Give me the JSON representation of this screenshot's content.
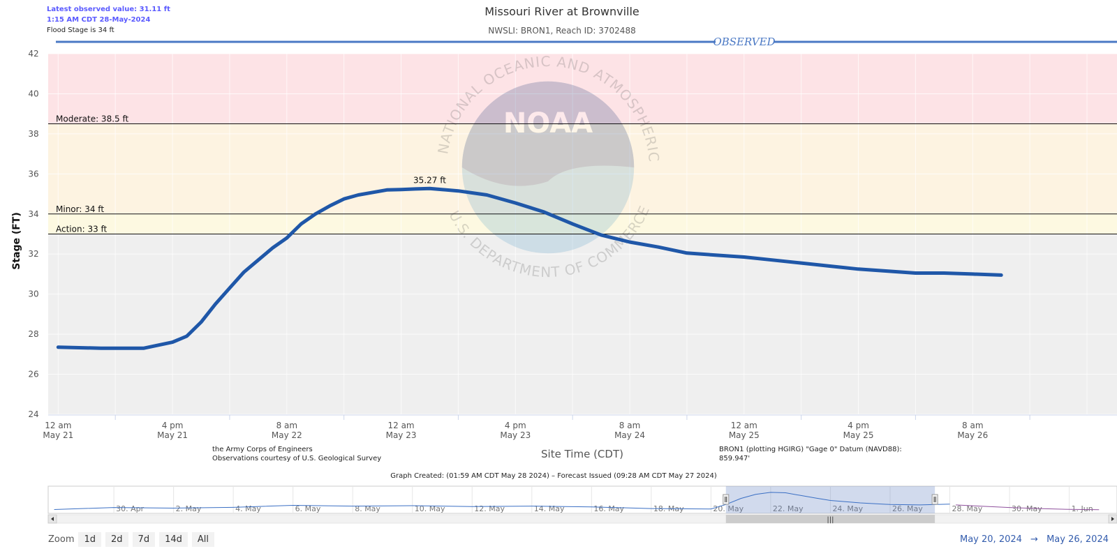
{
  "header": {
    "latest_label": "Latest observed value: 31.11 ft",
    "latest_time": "1:15 AM CDT 28-May-2024",
    "flood_stage": "Flood Stage is 34 ft"
  },
  "colors": {
    "major_band": "#fde3e6",
    "moderate_band": "#fdf3e1",
    "minor_band": "#fdf9e1",
    "normal_band": "#efefef",
    "line": "#1f57a8",
    "observed": "#4a78c4",
    "accent_blue": "#335cad",
    "forecast": "#8e4f9c"
  },
  "chart_data": {
    "type": "line",
    "title": "Missouri River at Brownville",
    "subtitle": "NWSLI: BRON1, Reach ID: 3702488",
    "ylabel": "Stage (FT)",
    "xlabel": "Site Time (CDT)",
    "ylim": [
      24,
      42
    ],
    "yticks": [
      24,
      26,
      28,
      30,
      32,
      34,
      36,
      38,
      40,
      42
    ],
    "xlim_hours": [
      -1.4,
      148.2
    ],
    "x_ticks": [
      {
        "time": "12 am",
        "date": "May 21"
      },
      {
        "time": "4 pm",
        "date": "May 21"
      },
      {
        "time": "8 am",
        "date": "May 22"
      },
      {
        "time": "12 am",
        "date": "May 23"
      },
      {
        "time": "4 pm",
        "date": "May 23"
      },
      {
        "time": "8 am",
        "date": "May 24"
      },
      {
        "time": "12 am",
        "date": "May 25"
      },
      {
        "time": "4 pm",
        "date": "May 25"
      },
      {
        "time": "8 am",
        "date": "May 26"
      }
    ],
    "x_tick_hours": [
      0,
      16,
      32,
      48,
      64,
      80,
      96,
      112,
      128
    ],
    "thresholds": [
      {
        "label": "Moderate: 38.5 ft",
        "value": 38.5
      },
      {
        "label": "Minor: 34 ft",
        "value": 34
      },
      {
        "label": "Action: 33 ft",
        "value": 33
      }
    ],
    "series": [
      {
        "name": "Observed",
        "x_hours": [
          -4,
          0,
          6,
          12,
          16,
          18,
          20,
          22,
          24,
          26,
          28,
          30,
          32,
          34,
          36,
          38,
          40,
          42,
          46,
          48,
          50,
          52,
          56,
          60,
          64,
          68,
          72,
          76,
          80,
          84,
          88,
          92,
          96,
          100,
          104,
          108,
          112,
          116,
          120,
          124,
          128,
          132
        ],
        "values": [
          27.4,
          27.35,
          27.3,
          27.3,
          27.6,
          27.9,
          28.6,
          29.5,
          30.3,
          31.1,
          31.7,
          32.3,
          32.8,
          33.5,
          34.0,
          34.4,
          34.75,
          34.95,
          35.2,
          35.22,
          35.25,
          35.27,
          35.15,
          34.95,
          34.55,
          34.1,
          33.5,
          32.95,
          32.6,
          32.35,
          32.05,
          31.95,
          31.85,
          31.7,
          31.55,
          31.4,
          31.25,
          31.15,
          31.05,
          31.05,
          31.0,
          30.95
        ]
      }
    ],
    "annotations": [
      {
        "text": "35.27 ft",
        "x_hours": 52,
        "value": 35.27
      }
    ],
    "section_label": "OBSERVED",
    "footer_notes": [
      "the Army Corps of Engineers",
      "Observations courtesy of U.S. Geological Survey"
    ],
    "datum_note": [
      "BRON1 (plotting HGIRG) \"Gage 0\" Datum (NAVD88):",
      "859.947'"
    ],
    "graph_created": "Graph Created: (01:59 AM CDT May 28 2024) – Forecast Issued (09:28 AM CDT May 27 2024)",
    "watermark": [
      "NATIONAL OCEANIC AND ATMOSPHERIC ADMINISTRATION",
      "U.S. DEPARTMENT OF COMMERCE",
      "NOAA"
    ],
    "navigator": {
      "labels": [
        "30. Apr",
        "2. May",
        "4. May",
        "6. May",
        "8. May",
        "10. May",
        "12. May",
        "14. May",
        "16. May",
        "18. May",
        "20. May",
        "22. May",
        "24. May",
        "26. May",
        "28. May",
        "30. May",
        "1. Jun"
      ],
      "label_day_offsets": [
        0,
        2,
        4,
        6,
        8,
        10,
        12,
        14,
        16,
        18,
        20,
        22,
        24,
        26,
        28,
        30,
        32
      ],
      "day_range": [
        -2.2,
        33.6
      ],
      "obs_days": [
        -2,
        0,
        2,
        4,
        6,
        8,
        10,
        12,
        14,
        16,
        18,
        20,
        20.5,
        21,
        21.5,
        22,
        22.5,
        23,
        23.5,
        24,
        25,
        26,
        27,
        28
      ],
      "obs_levels": [
        0.05,
        0.15,
        0.12,
        0.16,
        0.26,
        0.22,
        0.24,
        0.2,
        0.22,
        0.18,
        0.1,
        0.08,
        0.3,
        0.6,
        0.8,
        0.9,
        0.88,
        0.75,
        0.62,
        0.5,
        0.38,
        0.3,
        0.28,
        0.32
      ],
      "fc_days": [
        28.2,
        29,
        30,
        31,
        32,
        33
      ],
      "fc_levels": [
        0.28,
        0.22,
        0.15,
        0.1,
        0.06,
        0.04
      ],
      "selected_days": [
        20.5,
        27.5
      ]
    },
    "range_selector": {
      "zoom_label": "Zoom",
      "buttons": [
        "1d",
        "2d",
        "7d",
        "14d",
        "All"
      ],
      "from": "May 20, 2024",
      "to": "May 26, 2024",
      "separator": "→"
    }
  }
}
